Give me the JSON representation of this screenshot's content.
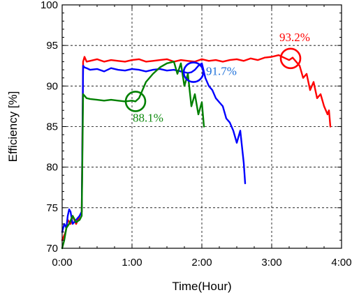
{
  "chart_data": {
    "type": "line",
    "title": "",
    "xlabel": "Time(Hour)",
    "ylabel": "Efficiency [%]",
    "xlim": [
      0,
      4
    ],
    "ylim": [
      70,
      100
    ],
    "x_ticks": [
      0,
      1,
      2,
      3,
      4
    ],
    "x_tick_labels": [
      "0:00",
      "1:00",
      "2:00",
      "3:00",
      "4:00"
    ],
    "y_ticks": [
      70,
      75,
      80,
      85,
      90,
      95,
      100
    ],
    "y_tick_labels": [
      "70",
      "75",
      "80",
      "85",
      "90",
      "95",
      "100"
    ],
    "grid": "dashed",
    "series": [
      {
        "color": "#ff0000",
        "x": [
          0.0,
          0.05,
          0.08,
          0.12,
          0.15,
          0.2,
          0.25,
          0.28,
          0.3,
          0.32,
          0.35,
          0.4,
          0.5,
          0.6,
          0.7,
          0.8,
          0.9,
          1.0,
          1.1,
          1.2,
          1.3,
          1.4,
          1.5,
          1.6,
          1.7,
          1.8,
          1.9,
          2.0,
          2.1,
          2.2,
          2.3,
          2.4,
          2.5,
          2.6,
          2.7,
          2.8,
          2.9,
          3.0,
          3.1,
          3.2,
          3.25,
          3.3,
          3.4,
          3.45,
          3.5,
          3.55,
          3.6,
          3.65,
          3.7,
          3.75,
          3.8,
          3.82,
          3.84
        ],
        "y": [
          71.0,
          72.0,
          73.5,
          73.0,
          74.0,
          73.0,
          74.0,
          74.5,
          93.0,
          93.6,
          93.0,
          93.1,
          93.3,
          93.0,
          93.2,
          93.1,
          93.0,
          93.2,
          93.3,
          93.0,
          93.1,
          93.2,
          93.3,
          93.0,
          93.2,
          93.1,
          93.0,
          93.3,
          93.1,
          93.2,
          93.0,
          93.2,
          93.3,
          93.1,
          93.4,
          93.2,
          93.5,
          93.6,
          93.8,
          93.4,
          93.2,
          93.5,
          92.5,
          91.0,
          91.5,
          89.5,
          90.5,
          88.5,
          89.0,
          87.5,
          86.5,
          87.0,
          85.0
        ]
      },
      {
        "color": "#0000ff",
        "x": [
          0.0,
          0.03,
          0.06,
          0.08,
          0.1,
          0.12,
          0.15,
          0.2,
          0.25,
          0.28,
          0.3,
          0.32,
          0.35,
          0.4,
          0.5,
          0.6,
          0.7,
          0.8,
          0.9,
          1.0,
          1.1,
          1.2,
          1.3,
          1.4,
          1.5,
          1.6,
          1.7,
          1.8,
          1.85,
          1.9,
          1.95,
          2.0,
          2.05,
          2.1,
          2.15,
          2.2,
          2.25,
          2.3,
          2.35,
          2.4,
          2.45,
          2.5,
          2.55,
          2.6,
          2.62
        ],
        "y": [
          72.0,
          73.0,
          72.5,
          74.0,
          74.8,
          74.5,
          73.0,
          73.5,
          74.0,
          74.5,
          92.5,
          92.3,
          92.2,
          92.0,
          92.1,
          91.8,
          92.2,
          92.0,
          91.9,
          92.1,
          92.0,
          91.8,
          92.0,
          92.1,
          91.9,
          92.0,
          91.8,
          91.6,
          91.7,
          92.0,
          92.5,
          92.8,
          91.0,
          90.0,
          89.5,
          88.5,
          88.0,
          87.5,
          86.0,
          85.5,
          84.5,
          83.0,
          84.5,
          80.5,
          78.0
        ]
      },
      {
        "color": "#008000",
        "x": [
          0.0,
          0.03,
          0.06,
          0.1,
          0.15,
          0.2,
          0.25,
          0.28,
          0.3,
          0.35,
          0.4,
          0.5,
          0.6,
          0.7,
          0.8,
          0.9,
          1.0,
          1.05,
          1.1,
          1.15,
          1.2,
          1.3,
          1.4,
          1.5,
          1.6,
          1.65,
          1.7,
          1.75,
          1.8,
          1.85,
          1.9,
          1.95,
          2.0,
          2.03
        ],
        "y": [
          70.0,
          71.0,
          72.5,
          73.0,
          74.0,
          73.2,
          73.5,
          74.0,
          89.0,
          88.5,
          88.4,
          88.3,
          88.2,
          88.3,
          88.2,
          88.1,
          88.2,
          88.1,
          88.5,
          89.5,
          90.5,
          91.5,
          92.3,
          92.8,
          93.0,
          91.5,
          92.8,
          90.0,
          91.5,
          87.5,
          89.0,
          86.5,
          88.0,
          85.0
        ]
      }
    ],
    "annotations": [
      {
        "text": "93.2%",
        "color": "#ff0000",
        "x": 3.27,
        "y": 93.4
      },
      {
        "text": "91.7%",
        "color": "#1c6fd9",
        "x": 1.88,
        "y": 91.7
      },
      {
        "text": "88.1%",
        "color": "#0f8a0f",
        "x": 1.05,
        "y": 88.1
      }
    ]
  }
}
